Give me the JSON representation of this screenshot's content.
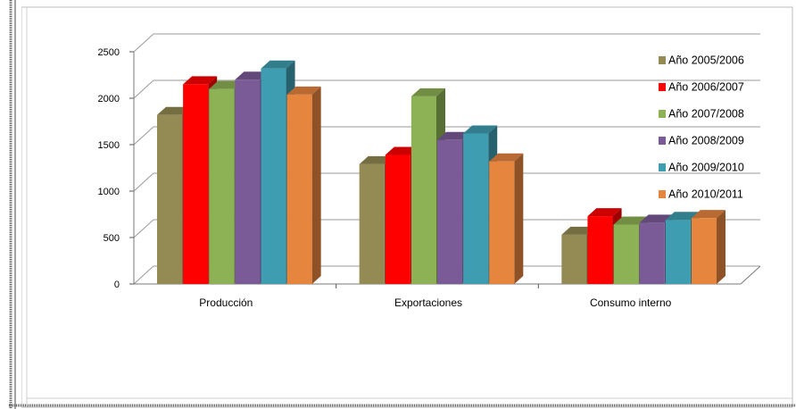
{
  "chart_data": {
    "type": "bar",
    "categories": [
      "Producción",
      "Exportaciones",
      "Consumo interno"
    ],
    "series": [
      {
        "name": "Año 2005/2006",
        "color": "#948A54",
        "values": [
          1820,
          1290,
          530
        ]
      },
      {
        "name": "Año 2006/2007",
        "color": "#FF0000",
        "values": [
          2150,
          1390,
          730
        ]
      },
      {
        "name": "Año 2007/2008",
        "color": "#8DB255",
        "values": [
          2100,
          2020,
          640
        ]
      },
      {
        "name": "Año 2008/2009",
        "color": "#7B5B97",
        "values": [
          2200,
          1550,
          660
        ]
      },
      {
        "name": "Año 2009/2010",
        "color": "#3E9DB0",
        "values": [
          2320,
          1620,
          690
        ]
      },
      {
        "name": "Año 2010/2011",
        "color": "#E6853E",
        "values": [
          2040,
          1320,
          710
        ]
      }
    ],
    "yticks": [
      0,
      500,
      1000,
      1500,
      2000,
      2500
    ],
    "ylim": [
      0,
      2500
    ],
    "grid": true,
    "legend_position": "right",
    "style": "3d-clustered-column"
  }
}
